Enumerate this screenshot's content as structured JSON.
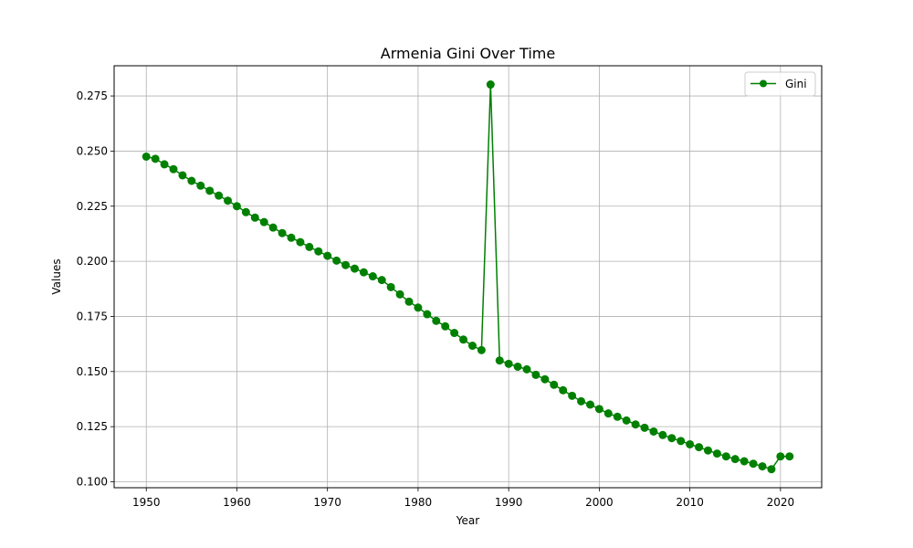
{
  "chart_data": {
    "type": "line",
    "title": "Armenia Gini Over Time",
    "xlabel": "Year",
    "ylabel": "Values",
    "xlim": [
      1946.45,
      2024.55
    ],
    "ylim": [
      0.0973,
      0.2887
    ],
    "xticks": [
      1950,
      1960,
      1970,
      1980,
      1990,
      2000,
      2010,
      2020
    ],
    "yticks": [
      0.1,
      0.125,
      0.15,
      0.175,
      0.2,
      0.225,
      0.25,
      0.275
    ],
    "ytick_labels": [
      "0.100",
      "0.125",
      "0.150",
      "0.175",
      "0.200",
      "0.225",
      "0.250",
      "0.275"
    ],
    "grid": true,
    "legend": "top-right",
    "series": [
      {
        "name": "Gini",
        "color": "#008000",
        "marker": "circle",
        "x": [
          1950,
          1951,
          1952,
          1953,
          1954,
          1955,
          1956,
          1957,
          1958,
          1959,
          1960,
          1961,
          1962,
          1963,
          1964,
          1965,
          1966,
          1967,
          1968,
          1969,
          1970,
          1971,
          1972,
          1973,
          1974,
          1975,
          1976,
          1977,
          1978,
          1979,
          1980,
          1981,
          1982,
          1983,
          1984,
          1985,
          1986,
          1987,
          1988,
          1989,
          1990,
          1991,
          1992,
          1993,
          1994,
          1995,
          1996,
          1997,
          1998,
          1999,
          2000,
          2001,
          2002,
          2003,
          2004,
          2005,
          2006,
          2007,
          2008,
          2009,
          2010,
          2011,
          2012,
          2013,
          2014,
          2015,
          2016,
          2017,
          2018,
          2019,
          2020,
          2021
        ],
        "y": [
          0.2475,
          0.2465,
          0.244,
          0.2418,
          0.239,
          0.2365,
          0.2343,
          0.232,
          0.2298,
          0.2275,
          0.225,
          0.2223,
          0.2198,
          0.2178,
          0.2153,
          0.2128,
          0.2107,
          0.2087,
          0.2065,
          0.2045,
          0.2025,
          0.2003,
          0.1983,
          0.1967,
          0.195,
          0.1932,
          0.1915,
          0.1883,
          0.185,
          0.1817,
          0.179,
          0.176,
          0.173,
          0.1705,
          0.1675,
          0.1645,
          0.1617,
          0.1597,
          0.2802,
          0.155,
          0.1535,
          0.1522,
          0.151,
          0.1485,
          0.1465,
          0.144,
          0.1415,
          0.139,
          0.1365,
          0.135,
          0.133,
          0.131,
          0.1295,
          0.1278,
          0.126,
          0.1245,
          0.1228,
          0.1212,
          0.1198,
          0.1185,
          0.117,
          0.1157,
          0.1142,
          0.1128,
          0.1115,
          0.1103,
          0.1093,
          0.1082,
          0.107,
          0.1057,
          0.1115,
          0.1115
        ]
      }
    ]
  }
}
